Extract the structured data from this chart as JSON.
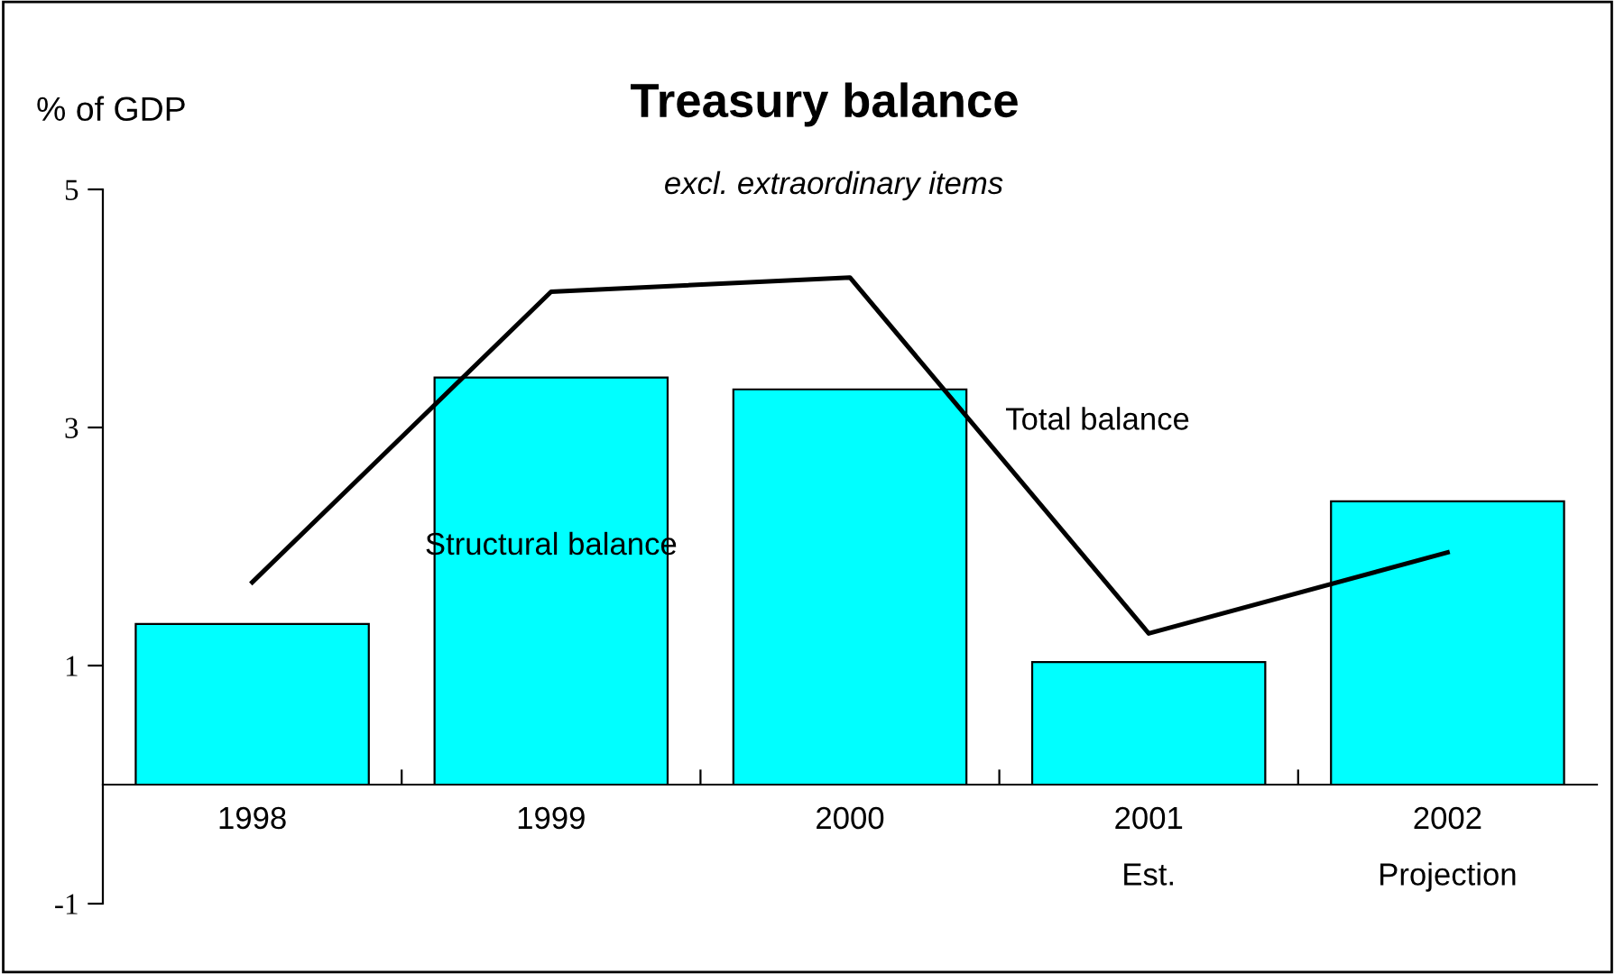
{
  "chart_data": {
    "type": "bar",
    "title": "Treasury balance",
    "subtitle": "excl. extraordinary items",
    "ylabel": "% of GDP",
    "categories": [
      "1998",
      "1999",
      "2000",
      "2001\nEst.",
      "2002\nProjection"
    ],
    "series": [
      {
        "name": "Structural balance",
        "color": "#00ffff",
        "values": [
          1.35,
          3.42,
          3.32,
          1.03,
          2.38
        ]
      },
      {
        "name": "Total balance",
        "type": "line",
        "color": "#000000",
        "values": [
          1.7,
          4.14,
          4.26,
          1.27,
          1.95
        ]
      }
    ],
    "ylim": [
      -1,
      5
    ],
    "yticks": [
      -1,
      1,
      3,
      5
    ],
    "grid": false,
    "legend": false,
    "marker": "none",
    "line_style": "solid"
  }
}
